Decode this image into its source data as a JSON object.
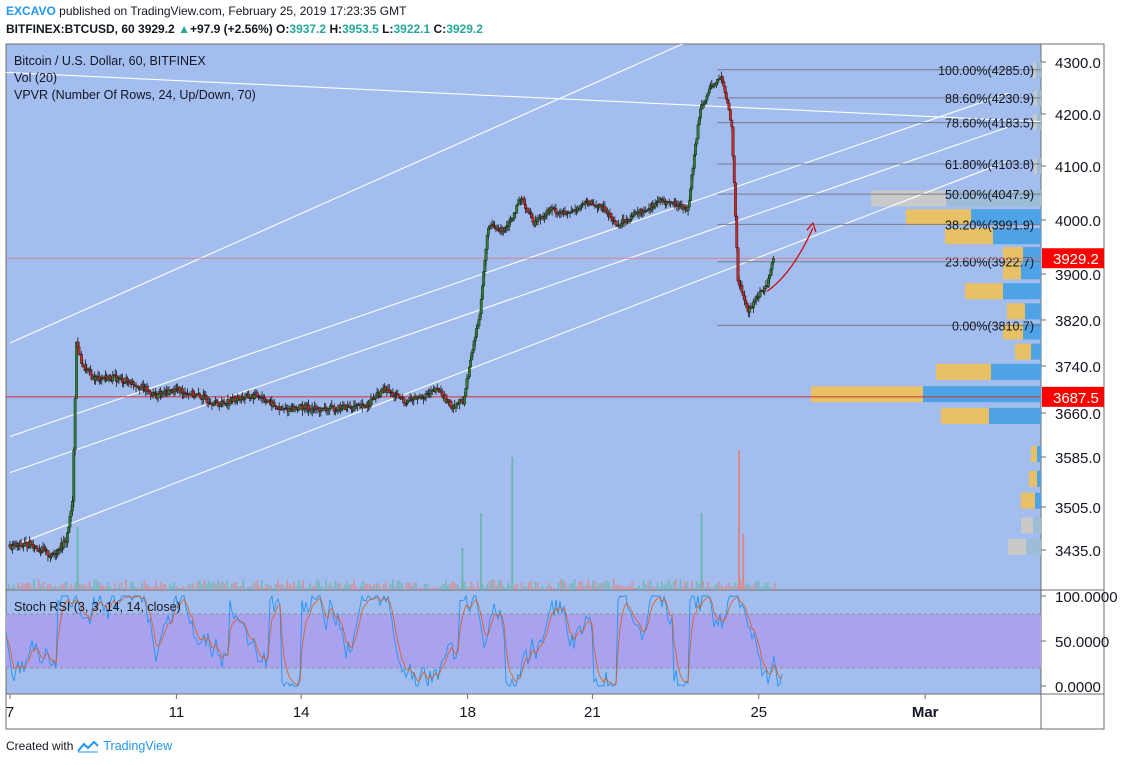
{
  "header": {
    "author": "EXCAVO",
    "published_text": "published on TradingView.com, February 25, 2019 17:23:35 GMT",
    "symbol": "BITFINEX:BTCUSD, 60",
    "last": "3929.2",
    "change": "+97.9 (+2.56%)",
    "open_label": "O:",
    "open": "3937.2",
    "high_label": "H:",
    "high": "3953.5",
    "low_label": "L:",
    "low": "3922.1",
    "close_label": "C:",
    "close": "3929.2"
  },
  "chart_data": {
    "type": "line",
    "title": "Bitcoin / U.S. Dollar, 60, BITFINEX",
    "indicators": [
      "Vol (20)",
      "VPVR (Number Of Rows, 24, Up/Down, 70)"
    ],
    "xlabel": "",
    "ylabel": "",
    "x_ticks": [
      "7",
      "11",
      "14",
      "18",
      "21",
      "25",
      "Mar"
    ],
    "y_ticks": [
      3435.0,
      3505.0,
      3585.0,
      3660.0,
      3740.0,
      3820.0,
      3900.0,
      4000.0,
      4100.0,
      4200.0,
      4300.0
    ],
    "y_tick_labels": [
      "3435.0",
      "3505.0",
      "3585.0",
      "3660.0",
      "3740.0",
      "3820.0",
      "3900.0",
      "4000.0",
      "4100.0",
      "4200.0",
      "4300.0"
    ],
    "ylim": [
      3400,
      4320
    ],
    "xlim_days": [
      7,
      31
    ],
    "series": [
      {
        "x": [
          7.0,
          7.5,
          8.0,
          8.35,
          8.5,
          8.6,
          8.75,
          9.0,
          9.5,
          10.0,
          10.5,
          11.0,
          11.5,
          12.0,
          12.5,
          13.0,
          13.5,
          14.0,
          14.5,
          15.0,
          15.5,
          16.0,
          16.5,
          17.0,
          17.3,
          17.6,
          17.9,
          18.1,
          18.3,
          18.5,
          18.8,
          19.0,
          19.3,
          19.6,
          20.0,
          20.4,
          20.8,
          21.0,
          21.3,
          21.6,
          22.0,
          22.3,
          22.6,
          23.0,
          23.3,
          23.6,
          23.9,
          24.1,
          24.25,
          24.35,
          24.5,
          24.75,
          25.0,
          25.2,
          25.35
        ],
        "y": [
          3440,
          3445,
          3425,
          3450,
          3510,
          3780,
          3740,
          3720,
          3720,
          3710,
          3690,
          3700,
          3690,
          3675,
          3685,
          3690,
          3665,
          3670,
          3665,
          3670,
          3670,
          3700,
          3680,
          3690,
          3700,
          3672,
          3680,
          3760,
          3835,
          3990,
          3980,
          3995,
          4040,
          3995,
          4020,
          4010,
          4030,
          4030,
          4020,
          3990,
          4010,
          4020,
          4035,
          4030,
          4020,
          4215,
          4255,
          4270,
          4220,
          4180,
          3890,
          3835,
          3865,
          3880,
          3929
        ]
      }
    ],
    "last_price": "3929.2",
    "marked_price": "3687.5",
    "fib_levels": [
      {
        "label": "100.00%(4285.0)",
        "price": 4285.0
      },
      {
        "label": "88.60%(4230.9)",
        "price": 4230.9
      },
      {
        "label": "78.60%(4183.5)",
        "price": 4183.5
      },
      {
        "label": "61.80%(4103.8)",
        "price": 4103.8
      },
      {
        "label": "50.00%(4047.9)",
        "price": 4047.9
      },
      {
        "label": "38.20%(3991.9)",
        "price": 3991.9
      },
      {
        "label": "23.60%(3922.7)",
        "price": 3922.7
      },
      {
        "label": "0.00%(3810.7)",
        "price": 3810.7
      }
    ],
    "vpvr": [
      {
        "price": 4285,
        "up": 5,
        "down": 3,
        "gray": true
      },
      {
        "price": 4230,
        "up": 4,
        "down": 3,
        "gray": true
      },
      {
        "price": 4185,
        "up": 4,
        "down": 4,
        "gray": true
      },
      {
        "price": 4100,
        "up": 4,
        "down": 3,
        "gray": true
      },
      {
        "price": 4040,
        "up": 95,
        "down": 75,
        "gray": true
      },
      {
        "price": 4005,
        "up": 70,
        "down": 65
      },
      {
        "price": 3970,
        "up": 48,
        "down": 48
      },
      {
        "price": 3935,
        "up": 18,
        "down": 20
      },
      {
        "price": 3905,
        "up": 20,
        "down": 18
      },
      {
        "price": 3870,
        "up": 38,
        "down": 38
      },
      {
        "price": 3835,
        "up": 16,
        "down": 18
      },
      {
        "price": 3800,
        "up": 18,
        "down": 20
      },
      {
        "price": 3765,
        "up": 10,
        "down": 16
      },
      {
        "price": 3730,
        "up": 50,
        "down": 55
      },
      {
        "price": 3692,
        "up": 118,
        "down": 112
      },
      {
        "price": 3655,
        "up": 52,
        "down": 48
      },
      {
        "price": 3590,
        "up": 4,
        "down": 6
      },
      {
        "price": 3550,
        "up": 4,
        "down": 8
      },
      {
        "price": 3515,
        "up": 6,
        "down": 14
      },
      {
        "price": 3475,
        "up": 8,
        "down": 12,
        "gray": true
      },
      {
        "price": 3440,
        "up": 15,
        "down": 18,
        "gray": true
      }
    ],
    "volume_spikes": [
      {
        "x": 8.6,
        "v": 0.45
      },
      {
        "x": 17.85,
        "v": 0.3
      },
      {
        "x": 18.3,
        "v": 0.55
      },
      {
        "x": 19.05,
        "v": 0.95
      },
      {
        "x": 24.5,
        "v": 1.0
      },
      {
        "x": 24.6,
        "v": 0.4
      },
      {
        "x": 23.6,
        "v": 0.55
      }
    ],
    "stoch_rsi": {
      "label": "Stoch RSI (3, 3, 14, 14, close)",
      "y_ticks": [
        "100.0000",
        "50.0000",
        "0.0000"
      ],
      "upper_band": 80,
      "lower_band": 20
    },
    "colors": {
      "plot_bg": "#a2bdee",
      "up": "#26a69a",
      "down": "#ef5350",
      "vpvr_up": "#4da3e6",
      "vpvr_down": "#e8c066",
      "vpvr_gray_up": "#9cbcd8",
      "vpvr_gray_down": "#c9c9c9",
      "stoch_band": "#a9a3ef",
      "price_label": "#ff0000"
    }
  },
  "footer": {
    "created_with": "Created with",
    "brand": "TradingView"
  }
}
